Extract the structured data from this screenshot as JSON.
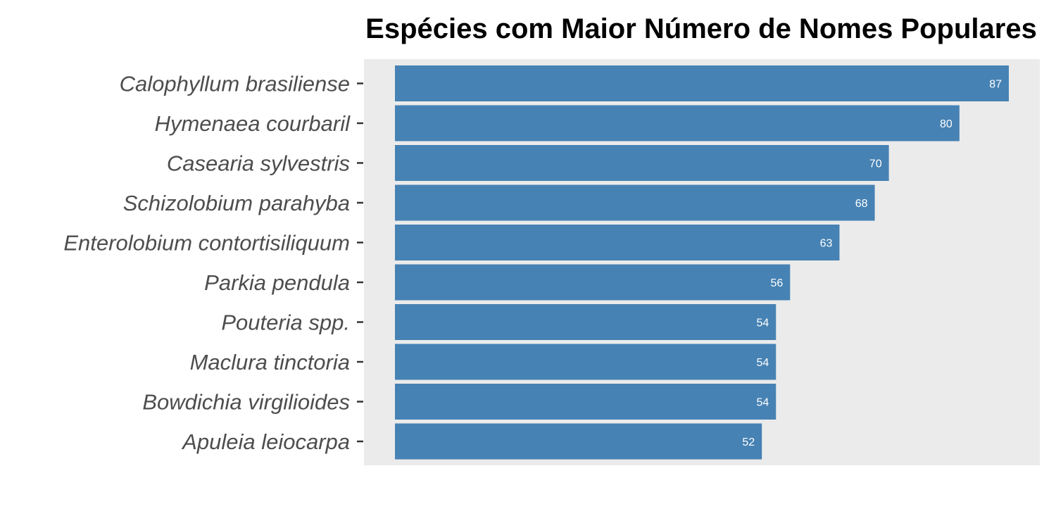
{
  "chart_data": {
    "type": "bar",
    "orientation": "horizontal",
    "title": "Espécies com Maior Número de Nomes Populares",
    "xlabel": "",
    "ylabel": "",
    "categories": [
      "Calophyllum brasiliense",
      "Hymenaea courbaril",
      "Casearia sylvestris",
      "Schizolobium parahyba",
      "Enterolobium contortisiliquum",
      "Parkia pendula",
      "Pouteria spp.",
      "Maclura tinctoria",
      "Bowdichia virgilioides",
      "Apuleia leiocarpa"
    ],
    "values": [
      87,
      80,
      70,
      68,
      63,
      56,
      54,
      54,
      54,
      52
    ],
    "value_labels": [
      "87",
      "80",
      "70",
      "68",
      "63",
      "56",
      "54",
      "54",
      "54",
      "52"
    ],
    "xlim": [
      0,
      91.35
    ],
    "grid": false,
    "legend": "none",
    "colors": {
      "bar": "#4682B4",
      "panel": "#EBEBEB",
      "value_label": "#FFFFFF",
      "category_label": "#4D4D4D",
      "title": "#000000"
    }
  }
}
